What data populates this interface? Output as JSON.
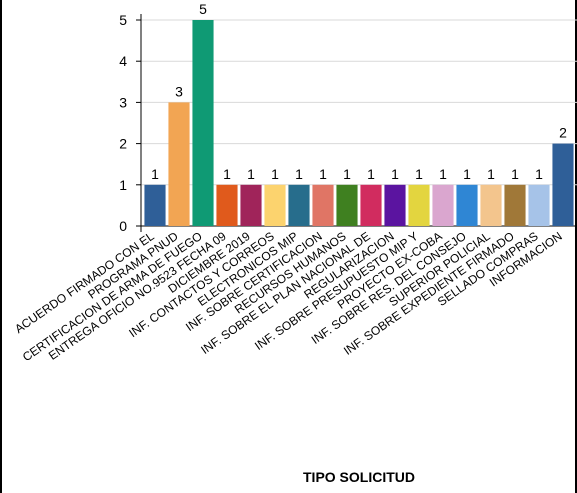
{
  "chart_data": {
    "type": "bar",
    "xlabel": "TIPO SOLICITUD",
    "ylabel": "",
    "ylim": [
      0,
      5
    ],
    "yticks": [
      0,
      1,
      2,
      3,
      4,
      5
    ],
    "grid": true,
    "legend": "none",
    "categories": [
      "ACUERDO FIRMADO CON EL",
      "PROGRAMA PNUD",
      "CERTIFICACION DE ARMA DE FUEGO",
      "ENTREGA OFICIO NO.9523 FECHA 09",
      "DICIEMBRE 2019",
      "INF. CONTACTOS Y CORREOS",
      "ELECTRONICOS MIP",
      "INF. SOBRE CERTIFICACION",
      "RECURSOS HUMANOS",
      "INF. SOBRE EL PLAN NACIONAL DE",
      "REGULARIZACION",
      "INF. SOBRE PRESUPUESTO MIP Y",
      "PROYECTO EX-COBA",
      "INF. SOBRE RES. DEL CONSEJO",
      "SUPERIOR POLICIAL",
      "INF. SOBRE EXPEDIENTE FIRMADO",
      "SELLADO COMPRAS",
      "INFORMACION"
    ],
    "values": [
      1,
      3,
      5,
      1,
      1,
      1,
      1,
      1,
      1,
      1,
      1,
      1,
      1,
      1,
      1,
      1,
      1,
      2
    ],
    "colors": [
      "#2F5F98",
      "#F2A553",
      "#0F9A74",
      "#E05A1C",
      "#A0245A",
      "#FCD36E",
      "#276D8C",
      "#E07565",
      "#3F8020",
      "#D12C5F",
      "#5B14A0",
      "#E3D53F",
      "#DAA6CF",
      "#2F86D4",
      "#F3C58D",
      "#A07838",
      "#A6C3E8",
      "#2F5F98",
      "#F2A553",
      "#0F9A74"
    ]
  }
}
